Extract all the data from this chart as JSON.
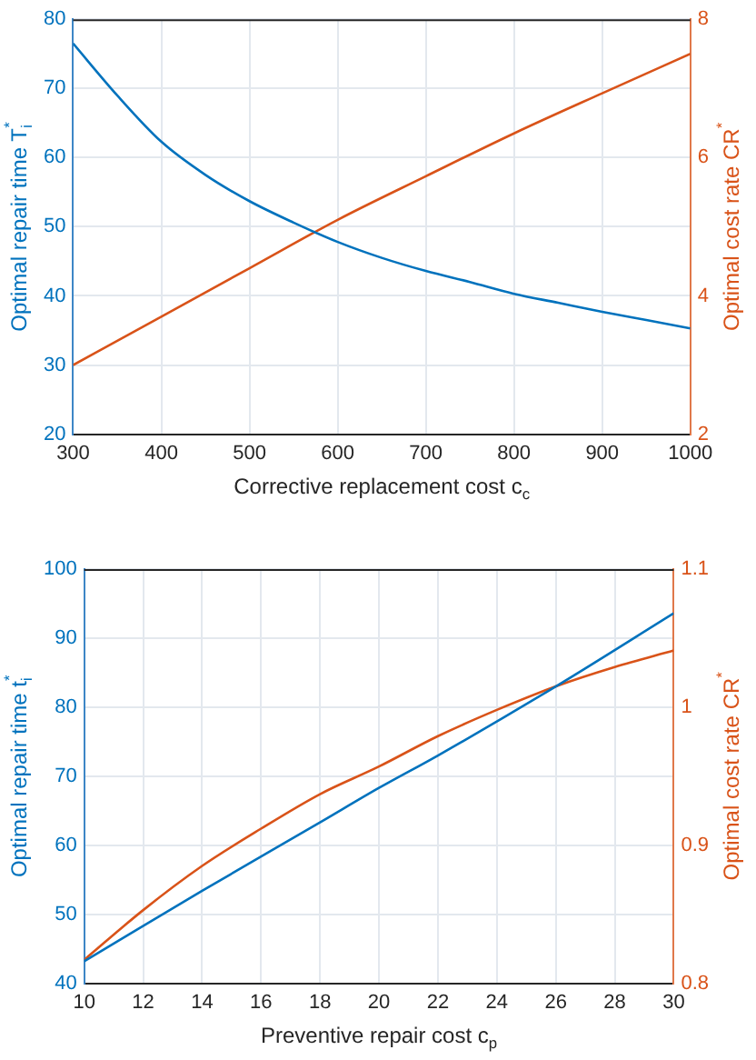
{
  "chart_data": [
    {
      "type": "line",
      "xlabel": "Corrective replacement cost c$_{c}$",
      "ylabel": "Optimal repair time T$_{i}$$^{*}$",
      "y2label": "Optimal cost rate CR$^{*}$",
      "grid": true,
      "legend": false,
      "xlim": [
        300,
        1000
      ],
      "xticks": [
        300,
        400,
        500,
        600,
        700,
        800,
        900,
        1000
      ],
      "ylim": [
        20,
        80
      ],
      "yticks": [
        20,
        30,
        40,
        50,
        60,
        70,
        80
      ],
      "y2lim": [
        2,
        8
      ],
      "y2ticks": [
        2,
        4,
        6,
        8
      ],
      "series": [
        {
          "color": "#0072bd",
          "x": [
            300,
            350,
            400,
            450,
            500,
            550,
            600,
            650,
            700,
            750,
            800,
            850,
            900,
            950,
            1000
          ],
          "values": [
            76.5,
            69,
            62.3,
            57.5,
            53.7,
            50.6,
            47.8,
            45.5,
            43.6,
            42,
            40.3,
            39,
            37.7,
            36.5,
            35.3
          ]
        },
        {
          "color": "#d95319",
          "axis": "y2",
          "x": [
            300,
            400,
            500,
            600,
            700,
            800,
            900,
            1000
          ],
          "values": [
            3.0,
            3.7,
            4.4,
            5.1,
            5.73,
            6.35,
            6.93,
            7.5
          ]
        }
      ]
    },
    {
      "type": "line",
      "xlabel": "Preventive repair cost c$_{p}$",
      "ylabel": "Optimal repair time t$_{i}$$^{*}$",
      "y2label": "Optimal cost rate CR$^{*}$",
      "grid": true,
      "legend": false,
      "xlim": [
        10,
        30
      ],
      "xticks": [
        10,
        12,
        14,
        16,
        18,
        20,
        22,
        24,
        26,
        28,
        30
      ],
      "ylim": [
        40,
        100
      ],
      "yticks": [
        40,
        50,
        60,
        70,
        80,
        90,
        100
      ],
      "y2lim": [
        0.8,
        1.1
      ],
      "y2ticks": [
        0.8,
        0.9,
        1,
        1.1
      ],
      "series": [
        {
          "color": "#0072bd",
          "x": [
            10,
            14,
            18,
            20,
            22,
            26,
            30
          ],
          "values": [
            43.2,
            53.4,
            63.3,
            68.3,
            73.0,
            83.0,
            93.6
          ]
        },
        {
          "color": "#d95319",
          "axis": "y2",
          "x": [
            10,
            12,
            14,
            16,
            18,
            20,
            22,
            24,
            26,
            28,
            30
          ],
          "values": [
            0.817,
            0.853,
            0.885,
            0.912,
            0.937,
            0.957,
            0.979,
            0.998,
            1.015,
            1.029,
            1.041
          ]
        }
      ]
    }
  ]
}
